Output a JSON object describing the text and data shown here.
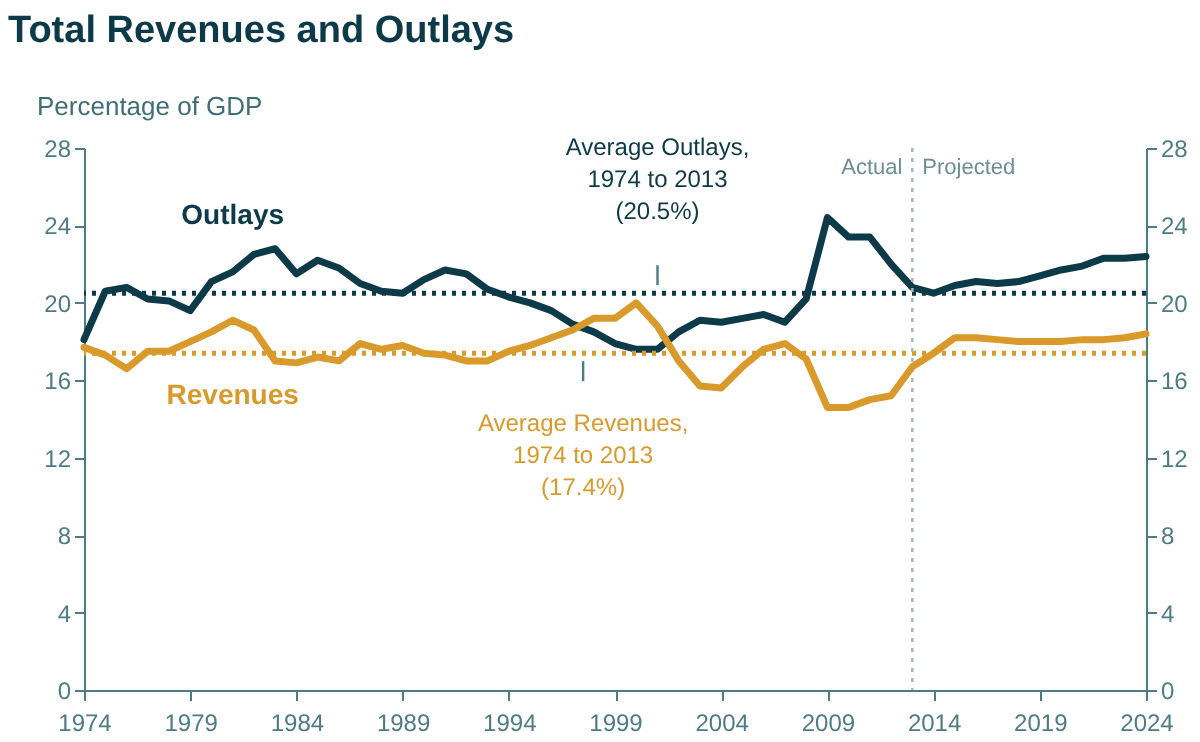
{
  "chart_data": {
    "type": "line",
    "title": "Total Revenues and Outlays",
    "ylabel": "Percentage of GDP",
    "x": [
      1974,
      1975,
      1976,
      1977,
      1978,
      1979,
      1980,
      1981,
      1982,
      1983,
      1984,
      1985,
      1986,
      1987,
      1988,
      1989,
      1990,
      1991,
      1992,
      1993,
      1994,
      1995,
      1996,
      1997,
      1998,
      1999,
      2000,
      2001,
      2002,
      2003,
      2004,
      2005,
      2006,
      2007,
      2008,
      2009,
      2010,
      2011,
      2012,
      2013,
      2014,
      2015,
      2016,
      2017,
      2018,
      2019,
      2020,
      2021,
      2022,
      2023,
      2024
    ],
    "series": [
      {
        "name": "Outlays",
        "color": "#0d3a48",
        "values": [
          18.1,
          20.6,
          20.8,
          20.2,
          20.1,
          19.6,
          21.1,
          21.6,
          22.5,
          22.8,
          21.5,
          22.2,
          21.8,
          21.0,
          20.6,
          20.5,
          21.2,
          21.7,
          21.5,
          20.7,
          20.3,
          20.0,
          19.6,
          18.9,
          18.5,
          17.9,
          17.6,
          17.6,
          18.5,
          19.1,
          19.0,
          19.2,
          19.4,
          19.0,
          20.2,
          24.4,
          23.4,
          23.4,
          22.0,
          20.8,
          20.5,
          20.9,
          21.1,
          21.0,
          21.1,
          21.4,
          21.7,
          21.9,
          22.3,
          22.3,
          22.4
        ]
      },
      {
        "name": "Revenues",
        "color": "#d99a2b",
        "values": [
          17.7,
          17.3,
          16.6,
          17.5,
          17.5,
          18.0,
          18.5,
          19.1,
          18.6,
          17.0,
          16.9,
          17.2,
          17.0,
          17.9,
          17.6,
          17.8,
          17.4,
          17.3,
          17.0,
          17.0,
          17.5,
          17.8,
          18.2,
          18.6,
          19.2,
          19.2,
          20.0,
          18.8,
          17.0,
          15.7,
          15.6,
          16.7,
          17.6,
          17.9,
          17.1,
          14.6,
          14.6,
          15.0,
          15.2,
          16.7,
          17.4,
          18.2,
          18.2,
          18.1,
          18.0,
          18.0,
          18.0,
          18.1,
          18.1,
          18.2,
          18.4
        ]
      }
    ],
    "xlim": [
      1974,
      2024
    ],
    "xticks": [
      1974,
      1979,
      1984,
      1989,
      1994,
      1999,
      2004,
      2009,
      2014,
      2019,
      2024
    ],
    "ylim": [
      0,
      28
    ],
    "yticks": [
      0,
      4,
      8,
      12,
      16,
      20,
      24,
      28
    ],
    "y2lim": [
      0,
      28
    ],
    "y2ticks": [
      0,
      4,
      8,
      12,
      16,
      20,
      24,
      28
    ],
    "ref_lines": [
      {
        "axis": "y",
        "value": 20.5,
        "color": "#0d3a48",
        "line_style": "dotted"
      },
      {
        "axis": "y",
        "value": 17.4,
        "color": "#d99a2b",
        "line_style": "dotted"
      },
      {
        "axis": "x",
        "value": 2013,
        "color": "#a9b9bf",
        "line_style": "dotted"
      }
    ],
    "annotations": [
      {
        "text": "Average Outlays, 1974 to 2013 (20.5%)",
        "x": 2001,
        "y": 20.5
      },
      {
        "text": "Average Revenues, 1974 to 2013 (17.4%)",
        "x": 1997.5,
        "y": 17.4
      },
      "Actual",
      "Projected"
    ],
    "line_style": "solid",
    "marker": "none"
  }
}
